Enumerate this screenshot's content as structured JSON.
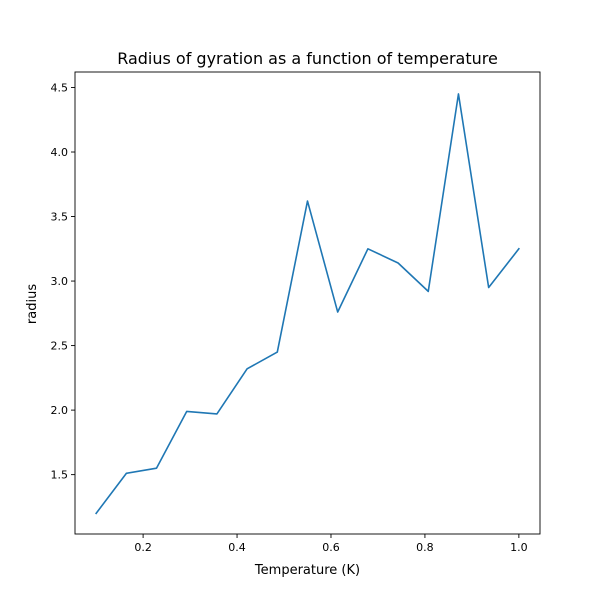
{
  "chart_data": {
    "type": "line",
    "title": "Radius of gyration as a function of temperature",
    "xlabel": "Temperature (K)",
    "ylabel": "radius",
    "xlim": [
      0.055,
      1.045
    ],
    "ylim": [
      1.04,
      4.62
    ],
    "xticks": [
      0.2,
      0.4,
      0.6,
      0.8,
      1.0
    ],
    "xtick_labels": [
      "0.2",
      "0.4",
      "0.6",
      "0.8",
      "1.0"
    ],
    "yticks": [
      1.5,
      2.0,
      2.5,
      3.0,
      3.5,
      4.0,
      4.5
    ],
    "ytick_labels": [
      "1.5",
      "2.0",
      "2.5",
      "3.0",
      "3.5",
      "4.0",
      "4.5"
    ],
    "grid": false,
    "legend": "none",
    "line_color": "#1f77b4",
    "series": [
      {
        "x": [
          0.1,
          0.1643,
          0.2286,
          0.2929,
          0.3571,
          0.4214,
          0.4857,
          0.55,
          0.6143,
          0.6786,
          0.7429,
          0.8071,
          0.8714,
          0.9357,
          1.0
        ],
        "values": [
          1.2,
          1.51,
          1.55,
          1.99,
          1.97,
          2.32,
          2.45,
          3.62,
          2.76,
          3.25,
          3.14,
          2.92,
          4.45,
          2.95,
          3.25
        ]
      }
    ]
  }
}
